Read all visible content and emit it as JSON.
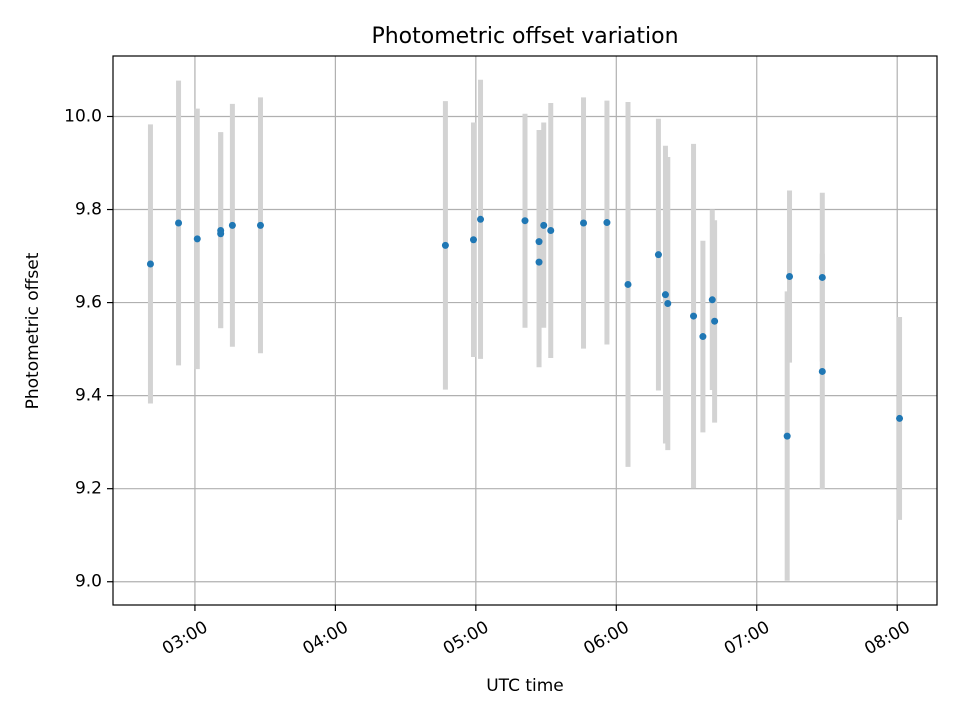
{
  "chart_data": {
    "type": "scatter",
    "title": "Photometric offset variation",
    "xlabel": "UTC time",
    "ylabel": "Photometric offset",
    "x_ticks": [
      "03:00",
      "04:00",
      "05:00",
      "06:00",
      "07:00",
      "08:00"
    ],
    "y_ticks": [
      "9.0",
      "9.2",
      "9.4",
      "9.6",
      "9.8",
      "10.0"
    ],
    "xlim": [
      "02:25",
      "08:17"
    ],
    "ylim": [
      8.95,
      10.13
    ],
    "grid": true,
    "colors": {
      "point": "#1f77b4",
      "errorbar": "#d3d3d3",
      "grid": "#b0b0b0"
    },
    "points": [
      {
        "x": "02:41",
        "y": 9.683,
        "ylow": 9.383,
        "yhigh": 9.983
      },
      {
        "x": "02:53",
        "y": 9.771,
        "ylow": 9.465,
        "yhigh": 10.077
      },
      {
        "x": "03:01",
        "y": 9.737,
        "ylow": 9.457,
        "yhigh": 10.017
      },
      {
        "x": "03:11",
        "y": 9.755,
        "ylow": 9.545,
        "yhigh": 9.966
      },
      {
        "x": "03:11",
        "y": 9.748,
        "ylow": 9.545,
        "yhigh": 9.966
      },
      {
        "x": "03:16",
        "y": 9.766,
        "ylow": 9.505,
        "yhigh": 10.027
      },
      {
        "x": "03:28",
        "y": 9.766,
        "ylow": 9.491,
        "yhigh": 10.041
      },
      {
        "x": "04:47",
        "y": 9.723,
        "ylow": 9.413,
        "yhigh": 10.033
      },
      {
        "x": "04:59",
        "y": 9.735,
        "ylow": 9.483,
        "yhigh": 9.987
      },
      {
        "x": "05:02",
        "y": 9.779,
        "ylow": 9.479,
        "yhigh": 10.079
      },
      {
        "x": "05:21",
        "y": 9.776,
        "ylow": 9.546,
        "yhigh": 10.006
      },
      {
        "x": "05:27",
        "y": 9.731,
        "ylow": 9.491,
        "yhigh": 9.971
      },
      {
        "x": "05:27",
        "y": 9.687,
        "ylow": 9.461,
        "yhigh": 9.913
      },
      {
        "x": "05:29",
        "y": 9.766,
        "ylow": 9.546,
        "yhigh": 9.987
      },
      {
        "x": "05:32",
        "y": 9.755,
        "ylow": 9.481,
        "yhigh": 10.029
      },
      {
        "x": "05:46",
        "y": 9.771,
        "ylow": 9.501,
        "yhigh": 10.041
      },
      {
        "x": "05:56",
        "y": 9.772,
        "ylow": 9.51,
        "yhigh": 10.034
      },
      {
        "x": "06:05",
        "y": 9.639,
        "ylow": 9.247,
        "yhigh": 10.031
      },
      {
        "x": "06:18",
        "y": 9.703,
        "ylow": 9.411,
        "yhigh": 9.995
      },
      {
        "x": "06:21",
        "y": 9.617,
        "ylow": 9.297,
        "yhigh": 9.937
      },
      {
        "x": "06:22",
        "y": 9.598,
        "ylow": 9.283,
        "yhigh": 9.913
      },
      {
        "x": "06:33",
        "y": 9.571,
        "ylow": 9.201,
        "yhigh": 9.941
      },
      {
        "x": "06:37",
        "y": 9.527,
        "ylow": 9.321,
        "yhigh": 9.733
      },
      {
        "x": "06:41",
        "y": 9.606,
        "ylow": 9.412,
        "yhigh": 9.8
      },
      {
        "x": "06:42",
        "y": 9.56,
        "ylow": 9.342,
        "yhigh": 9.777
      },
      {
        "x": "07:13",
        "y": 9.313,
        "ylow": 9.002,
        "yhigh": 9.624
      },
      {
        "x": "07:14",
        "y": 9.656,
        "ylow": 9.471,
        "yhigh": 9.841
      },
      {
        "x": "07:28",
        "y": 9.654,
        "ylow": 9.473,
        "yhigh": 9.836
      },
      {
        "x": "07:28",
        "y": 9.452,
        "ylow": 9.199,
        "yhigh": 9.705
      },
      {
        "x": "08:01",
        "y": 9.351,
        "ylow": 9.133,
        "yhigh": 9.569
      }
    ]
  }
}
